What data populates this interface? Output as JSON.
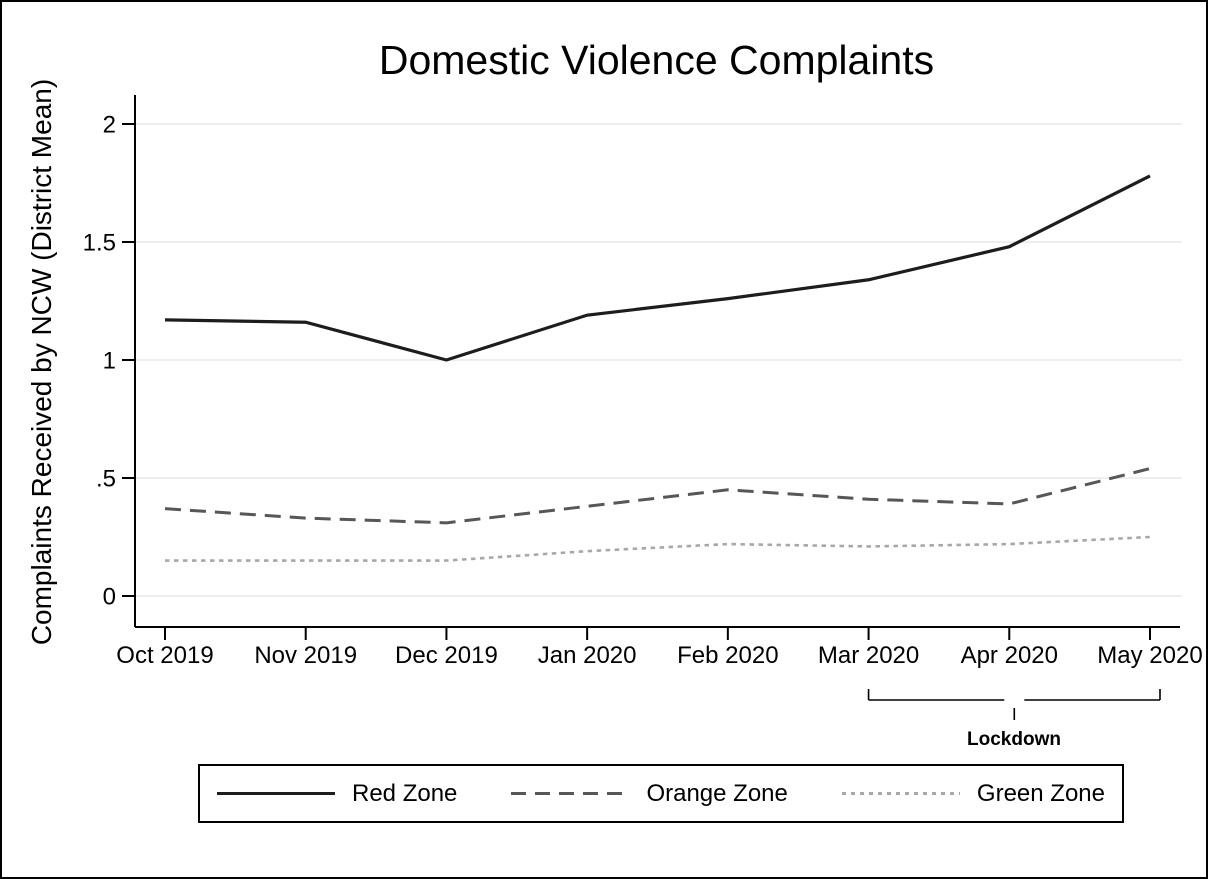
{
  "chart_data": {
    "type": "line",
    "title": "Domestic Violence Complaints",
    "ylabel": "Complaints Received by NCW (District Mean)",
    "xlabel": "",
    "categories": [
      "Oct 2019",
      "Nov 2019",
      "Dec 2019",
      "Jan 2020",
      "Feb 2020",
      "Mar 2020",
      "Apr 2020",
      "May 2020"
    ],
    "yticks": [
      0,
      0.5,
      1,
      1.5,
      2
    ],
    "ytick_labels": [
      "0",
      ".5",
      "1",
      "1.5",
      "2"
    ],
    "ylim": [
      -0.13,
      2.12
    ],
    "grid": "horizontal",
    "legend_position": "bottom",
    "series": [
      {
        "name": "Red Zone",
        "style": "solid",
        "color": "#1d1d1d",
        "values": [
          1.17,
          1.16,
          1.0,
          1.19,
          1.26,
          1.34,
          1.48,
          1.78
        ]
      },
      {
        "name": "Orange Zone",
        "style": "dashed",
        "color": "#575757",
        "values": [
          0.37,
          0.33,
          0.31,
          0.38,
          0.45,
          0.41,
          0.39,
          0.54
        ]
      },
      {
        "name": "Green Zone",
        "style": "dotted",
        "color": "#a8a8a8",
        "values": [
          0.15,
          0.15,
          0.15,
          0.19,
          0.22,
          0.21,
          0.22,
          0.25
        ]
      }
    ],
    "annotation": {
      "label": "Lockdown",
      "from_category": "Mar 2020",
      "to_category": "May 2020"
    },
    "colors": {
      "axis": "#000000",
      "gridline": "#e9e9e9",
      "text": "#000000",
      "background": "#ffffff"
    }
  },
  "legend": {
    "items": [
      {
        "label": "Red Zone"
      },
      {
        "label": "Orange Zone"
      },
      {
        "label": "Green Zone"
      }
    ]
  }
}
